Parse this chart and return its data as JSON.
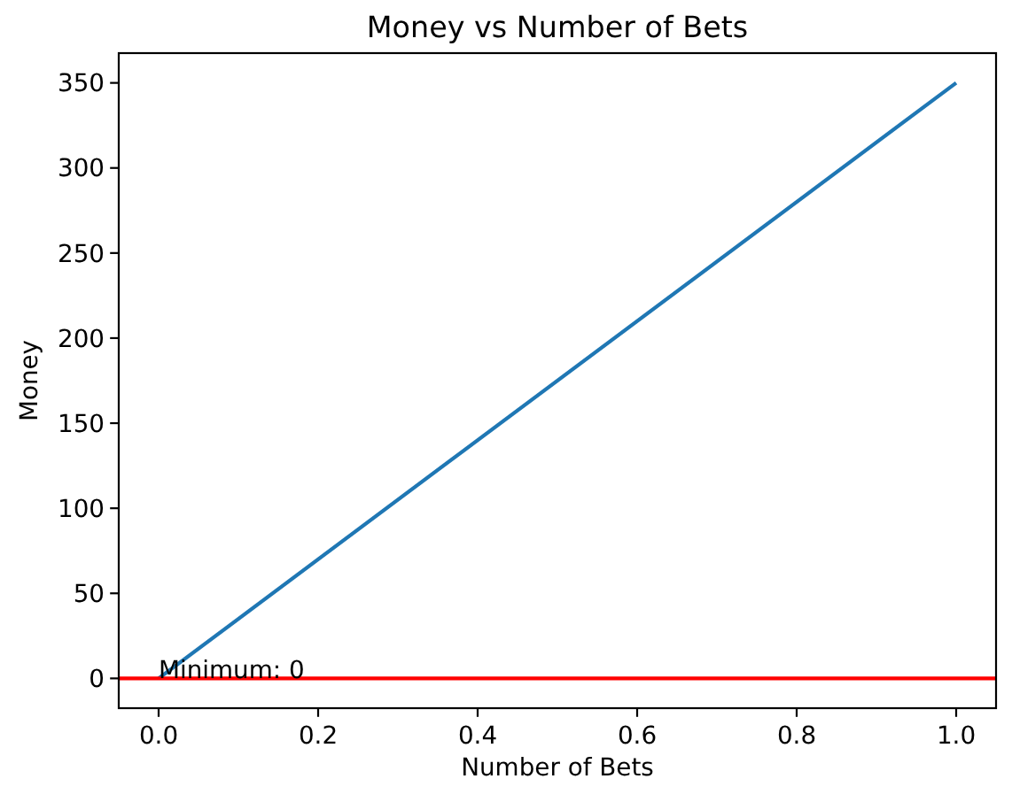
{
  "chart_data": {
    "type": "line",
    "title": "Money vs Number of Bets",
    "xlabel": "Number of Bets",
    "ylabel": "Money",
    "x": [
      0,
      1
    ],
    "series": [
      {
        "color": "#1f77b4",
        "values": [
          0,
          350
        ]
      }
    ],
    "xlim": [
      -0.05,
      1.05
    ],
    "ylim": [
      -17.5,
      367.5
    ],
    "xticks": [
      {
        "value": 0,
        "label": "0.0"
      },
      {
        "value": 0.2,
        "label": "0.2"
      },
      {
        "value": 0.4,
        "label": "0.4"
      },
      {
        "value": 0.6,
        "label": "0.6"
      },
      {
        "value": 0.8,
        "label": "0.8"
      },
      {
        "value": 1,
        "label": "1.0"
      }
    ],
    "yticks": [
      0,
      50,
      100,
      150,
      200,
      250,
      300,
      350
    ],
    "ref_lines": [
      {
        "axis": "y",
        "value": 0,
        "color": "#ff0000"
      }
    ],
    "annotations": [
      {
        "text": "Minimum: 0",
        "x": 0,
        "y": 0
      }
    ]
  }
}
